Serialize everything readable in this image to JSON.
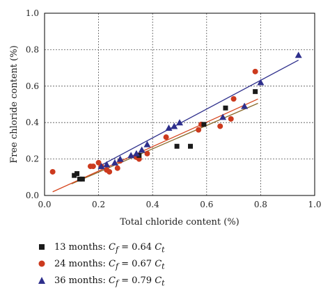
{
  "chart_data": {
    "type": "scatter",
    "xlabel": "Total chloride content (%)",
    "ylabel": "Free chloride content (%)",
    "xlim": [
      0,
      1.0
    ],
    "ylim": [
      0,
      1.0
    ],
    "x_ticks": [
      "0.0",
      "0.2",
      "0.4",
      "0.6",
      "0.8",
      "1.0"
    ],
    "y_ticks": [
      "0.0",
      "0.2",
      "0.4",
      "0.6",
      "0.8",
      "1.0"
    ],
    "grid": true,
    "legend_position": "bottom",
    "series": [
      {
        "name": "13 months",
        "label_prefix": "13 months: ",
        "lhs": "C",
        "lhs_sub": "f",
        "eq": " = 0.64",
        "rhs": "C",
        "rhs_sub": "t",
        "marker": "square",
        "color": "#1a1a1a",
        "line_color": "#8a6a2a",
        "slope": 0.64,
        "fit_x": [
          0.1,
          0.79
        ],
        "x": [
          0.11,
          0.12,
          0.13,
          0.14,
          0.35,
          0.49,
          0.54,
          0.59,
          0.67,
          0.78
        ],
        "y": [
          0.11,
          0.12,
          0.09,
          0.09,
          0.22,
          0.27,
          0.27,
          0.39,
          0.48,
          0.57
        ]
      },
      {
        "name": "24 months",
        "label_prefix": "24 months: ",
        "lhs": "C",
        "lhs_sub": "f",
        "eq": " = 0.67",
        "rhs": "C",
        "rhs_sub": "t",
        "marker": "circle",
        "color": "#cc3a1e",
        "line_color": "#d6451d",
        "slope": 0.67,
        "fit_x": [
          0.03,
          0.79
        ],
        "x": [
          0.03,
          0.17,
          0.18,
          0.2,
          0.21,
          0.23,
          0.24,
          0.27,
          0.28,
          0.34,
          0.35,
          0.38,
          0.45,
          0.57,
          0.58,
          0.65,
          0.69,
          0.7,
          0.78
        ],
        "y": [
          0.13,
          0.16,
          0.16,
          0.18,
          0.16,
          0.14,
          0.13,
          0.15,
          0.19,
          0.21,
          0.2,
          0.23,
          0.32,
          0.36,
          0.39,
          0.38,
          0.42,
          0.53,
          0.68
        ]
      },
      {
        "name": "36 months",
        "label_prefix": "36 months: ",
        "lhs": "C",
        "lhs_sub": "f",
        "eq": " = 0.79",
        "rhs": "C",
        "rhs_sub": "t",
        "marker": "triangle",
        "color": "#2e2f8c",
        "line_color": "#2e2f8c",
        "slope": 0.79,
        "fit_x": [
          0.2,
          0.94
        ],
        "x": [
          0.21,
          0.23,
          0.26,
          0.28,
          0.32,
          0.34,
          0.36,
          0.38,
          0.46,
          0.48,
          0.5,
          0.66,
          0.74,
          0.8,
          0.94
        ],
        "y": [
          0.16,
          0.17,
          0.18,
          0.2,
          0.22,
          0.23,
          0.25,
          0.28,
          0.37,
          0.38,
          0.4,
          0.43,
          0.49,
          0.62,
          0.77
        ]
      }
    ]
  }
}
